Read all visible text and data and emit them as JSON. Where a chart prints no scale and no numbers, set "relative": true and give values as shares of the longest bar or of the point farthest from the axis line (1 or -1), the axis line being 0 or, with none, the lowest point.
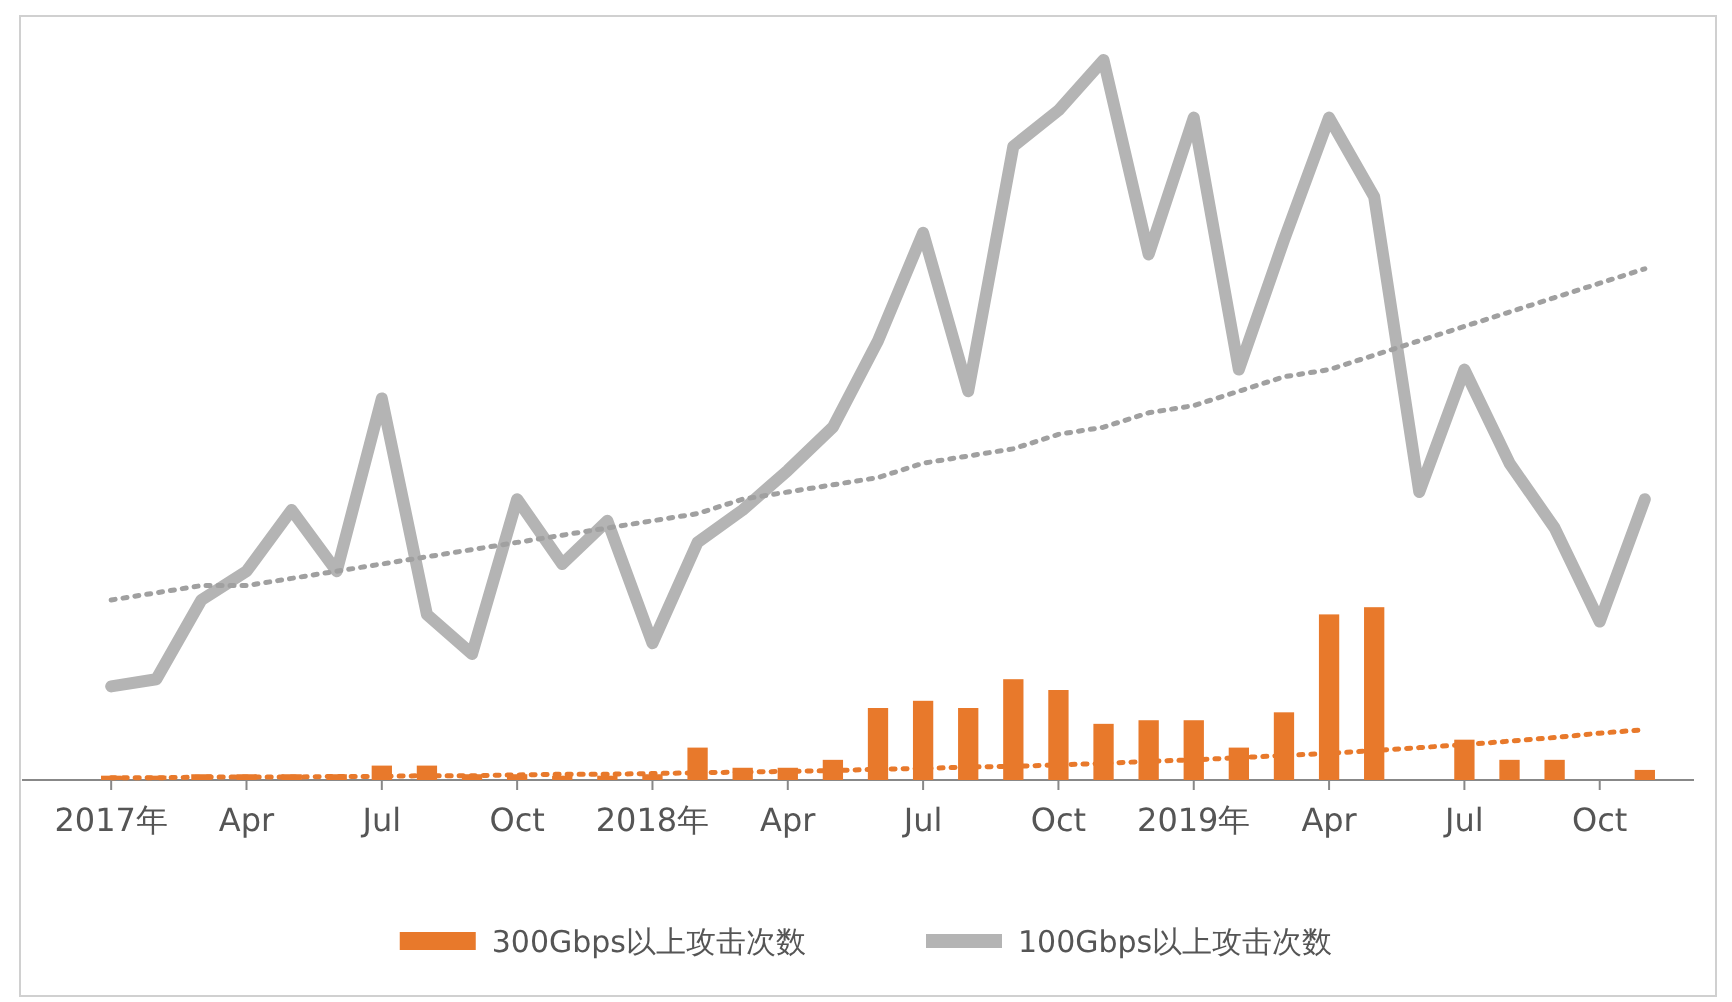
{
  "chart_data": {
    "type": "bar",
    "relative": true,
    "legend": "bottom",
    "categories": [
      "2017年",
      null,
      null,
      "Apr",
      null,
      null,
      "Jul",
      null,
      null,
      "Oct",
      null,
      null,
      "2018年",
      null,
      null,
      "Apr",
      null,
      null,
      "Jul",
      null,
      null,
      "Oct",
      null,
      null,
      "2019年",
      null,
      null,
      "Apr",
      null,
      null,
      "Jul",
      null,
      null,
      "Oct",
      null
    ],
    "series": [
      {
        "name": "300Gbps以上攻击次数",
        "color": "#e8792b",
        "values": [
          0.006,
          0.006,
          0.008,
          0.008,
          0.008,
          0.008,
          0.02,
          0.02,
          0.008,
          0.008,
          0.006,
          0.006,
          0.008,
          0.045,
          0.017,
          0.017,
          0.028,
          0.1,
          0.11,
          0.1,
          0.14,
          0.125,
          0.078,
          0.083,
          0.083,
          0.045,
          0.094,
          0.23,
          0.24,
          null,
          0.056,
          0.028,
          0.028,
          null,
          0.014
        ]
      },
      {
        "name": "100Gbps以上攻击次数",
        "type": "line",
        "color": "#b4b4b4",
        "values": [
          0.13,
          0.14,
          0.25,
          0.29,
          0.375,
          0.29,
          0.53,
          0.23,
          0.175,
          0.39,
          0.3,
          0.36,
          0.19,
          0.33,
          0.375,
          0.43,
          0.49,
          0.61,
          0.76,
          0.54,
          0.88,
          0.93,
          1.0,
          0.73,
          0.92,
          0.57,
          0.75,
          0.92,
          0.81,
          0.4,
          0.57,
          0.44,
          0.35,
          0.22,
          0.39
        ]
      },
      {
        "type": "line",
        "line_style": "dotted",
        "color": "#e8792b",
        "values": [
          0.003,
          0.003,
          0.004,
          0.004,
          0.004,
          0.005,
          0.005,
          0.006,
          0.006,
          0.007,
          0.008,
          0.008,
          0.009,
          0.01,
          0.011,
          0.012,
          0.013,
          0.015,
          0.016,
          0.018,
          0.019,
          0.021,
          0.023,
          0.026,
          0.028,
          0.031,
          0.034,
          0.037,
          0.041,
          0.045,
          0.049,
          0.054,
          0.059,
          0.065,
          0.07
        ]
      },
      {
        "type": "line",
        "line_style": "dotted",
        "color": "#a0a0a0",
        "values": [
          0.25,
          0.26,
          0.27,
          0.27,
          0.28,
          0.29,
          0.3,
          0.31,
          0.32,
          0.33,
          0.34,
          0.35,
          0.36,
          0.37,
          0.39,
          0.4,
          0.41,
          0.42,
          0.44,
          0.45,
          0.46,
          0.48,
          0.49,
          0.51,
          0.52,
          0.54,
          0.56,
          0.57,
          0.59,
          0.61,
          0.63,
          0.65,
          0.67,
          0.69,
          0.71
        ]
      }
    ]
  }
}
